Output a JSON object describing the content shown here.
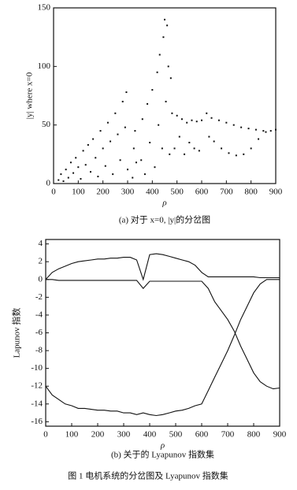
{
  "chart_data": [
    {
      "type": "scatter",
      "xlabel": "ρ",
      "ylabel": "|y| where x=0",
      "caption": "(a) 对于 x=0, |y|的分岔图",
      "xlim": [
        0,
        900
      ],
      "ylim": [
        0,
        150
      ],
      "xticks": [
        0,
        100,
        200,
        300,
        400,
        500,
        600,
        700,
        800,
        900
      ],
      "yticks": [
        0,
        50,
        100,
        150
      ],
      "color": "#111111",
      "x": [
        20,
        30,
        40,
        50,
        60,
        70,
        80,
        90,
        100,
        110,
        120,
        130,
        140,
        150,
        160,
        170,
        180,
        190,
        200,
        210,
        220,
        230,
        240,
        250,
        260,
        270,
        280,
        290,
        295,
        300,
        320,
        325,
        330,
        335,
        355,
        360,
        370,
        380,
        390,
        400,
        410,
        420,
        425,
        430,
        440,
        445,
        450,
        455,
        460,
        465,
        470,
        475,
        480,
        490,
        500,
        510,
        520,
        530,
        540,
        550,
        560,
        570,
        580,
        590,
        600,
        620,
        630,
        640,
        650,
        670,
        680,
        700,
        710,
        730,
        740,
        760,
        770,
        790,
        800,
        820,
        830,
        850,
        860,
        880,
        900
      ],
      "values": [
        3,
        8,
        2,
        12,
        5,
        18,
        9,
        22,
        14,
        4,
        28,
        16,
        33,
        10,
        38,
        22,
        6,
        45,
        30,
        15,
        52,
        36,
        8,
        60,
        42,
        20,
        70,
        48,
        78,
        12,
        5,
        30,
        45,
        18,
        20,
        55,
        8,
        68,
        35,
        80,
        14,
        95,
        50,
        110,
        30,
        125,
        140,
        70,
        135,
        100,
        25,
        90,
        60,
        30,
        58,
        40,
        55,
        25,
        52,
        35,
        54,
        30,
        53,
        28,
        54,
        60,
        40,
        56,
        36,
        54,
        30,
        52,
        26,
        50,
        24,
        48,
        25,
        47,
        30,
        46,
        38,
        45,
        44,
        45,
        46
      ]
    },
    {
      "type": "line",
      "xlabel": "ρ",
      "ylabel": "Lapunov 指数",
      "caption": "(b) 关于的 Lyapunov 指数集",
      "xlim": [
        0,
        900
      ],
      "ylim": [
        -16.5,
        4.5
      ],
      "xticks": [
        0,
        100,
        200,
        300,
        400,
        500,
        600,
        700,
        800,
        900
      ],
      "yticks": [
        4,
        2,
        0,
        -2,
        -4,
        -6,
        -8,
        -10,
        -12,
        -14,
        -16
      ],
      "x": [
        0,
        25,
        50,
        75,
        100,
        125,
        150,
        175,
        200,
        225,
        250,
        275,
        300,
        325,
        350,
        375,
        400,
        425,
        450,
        475,
        500,
        525,
        550,
        575,
        600,
        625,
        650,
        675,
        700,
        725,
        750,
        775,
        800,
        825,
        850,
        875,
        900
      ],
      "series": [
        {
          "color": "#111111",
          "values": [
            0,
            0.8,
            1.2,
            1.5,
            1.8,
            2.0,
            2.1,
            2.2,
            2.3,
            2.3,
            2.4,
            2.4,
            2.5,
            2.5,
            2.2,
            0,
            2.8,
            2.9,
            2.8,
            2.6,
            2.4,
            2.2,
            2,
            1.6,
            0.8,
            0.3,
            0.3,
            0.3,
            0.3,
            0.3,
            0.3,
            0.3,
            0.3,
            0.2,
            0.2,
            0.2,
            0.2
          ]
        },
        {
          "color": "#111111",
          "values": [
            0,
            0,
            -0.1,
            -0.1,
            -0.1,
            -0.1,
            -0.1,
            -0.1,
            -0.1,
            -0.1,
            -0.1,
            -0.1,
            -0.1,
            -0.1,
            -0.1,
            -1,
            -0.2,
            -0.2,
            -0.2,
            -0.2,
            -0.2,
            -0.2,
            -0.2,
            -0.2,
            -0.2,
            -1,
            -2.5,
            -3.5,
            -4.5,
            -5.8,
            -7.5,
            -9,
            -10.5,
            -11.5,
            -12,
            -12.3,
            -12.2
          ]
        },
        {
          "color": "#111111",
          "values": [
            -12,
            -13,
            -13.5,
            -14,
            -14.2,
            -14.5,
            -14.5,
            -14.6,
            -14.7,
            -14.7,
            -14.8,
            -14.8,
            -15,
            -15,
            -15.2,
            -15,
            -15.2,
            -15.3,
            -15.2,
            -15,
            -14.8,
            -14.7,
            -14.5,
            -14.2,
            -14,
            -12.5,
            -11,
            -9.5,
            -8,
            -6.3,
            -4.5,
            -3,
            -1.5,
            -0.5,
            0,
            0,
            0
          ]
        }
      ]
    }
  ],
  "figure_caption": "图 1 电机系统的分岔图及 Lyapunov 指数集"
}
